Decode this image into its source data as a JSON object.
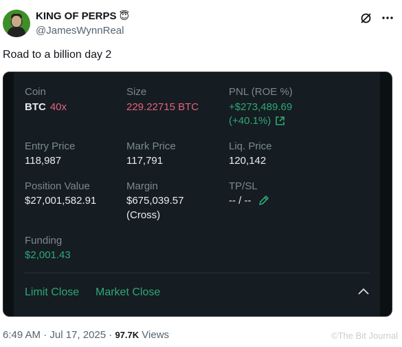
{
  "tweet": {
    "display_name": "KING OF PERPS",
    "emoji": "😇",
    "handle": "@JamesWynnReal",
    "text": "Road to a billion day 2",
    "icons": [
      "grok-icon",
      "more-icon"
    ],
    "time": "6:49 AM · Jul 17, 2025 · ",
    "views_count": "97.7K",
    "views_label": " Views",
    "watermark": "©The Bit Journal"
  },
  "position": {
    "coin_label": "Coin",
    "coin": "BTC",
    "leverage": "40x",
    "size_label": "Size",
    "size": "229.22715 BTC",
    "pnl_label": "PNL (ROE %)",
    "pnl": "+$273,489.69",
    "roe": "(+40.1%)",
    "entry_label": "Entry Price",
    "entry": "118,987",
    "mark_label": "Mark Price",
    "mark": "117,791",
    "liq_label": "Liq. Price",
    "liq": "120,142",
    "posval_label": "Position Value",
    "posval": "$27,001,582.91",
    "margin_label": "Margin",
    "margin": "$675,039.57",
    "margin_mode": "(Cross)",
    "tpsl_label": "TP/SL",
    "tpsl": "-- / --",
    "funding_label": "Funding",
    "funding": "$2,001.43",
    "limit_close": "Limit Close",
    "market_close": "Market Close"
  },
  "colors": {
    "green": "#2fa876",
    "red": "#e7617b",
    "panel": "#151c22"
  }
}
